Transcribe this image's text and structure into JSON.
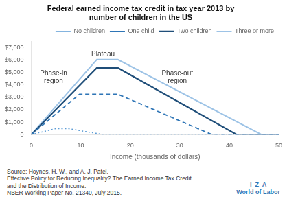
{
  "chart_data": {
    "type": "line",
    "title": "Federal earned income tax credit in tax year 2013 by\nnumber of children in the US",
    "xlabel": "Income (thousands of dollars)",
    "xlim": [
      0,
      50
    ],
    "xticks": [
      0,
      10,
      20,
      30,
      40,
      50
    ],
    "ylim": [
      0,
      7500
    ],
    "yticks": [
      0,
      {
        "value": 1000,
        "label": "$1,000"
      },
      {
        "value": 2000,
        "label": "$2,000"
      },
      {
        "value": 3000,
        "label": "$3,000"
      },
      {
        "value": 4000,
        "label": "$4,000"
      },
      {
        "value": 5000,
        "label": "$5,000"
      },
      {
        "value": 6000,
        "label": "$6,000"
      },
      {
        "value": 7000,
        "label": "$7,000"
      }
    ],
    "grid": false,
    "legend": "upper right",
    "series": [
      {
        "name": "No children",
        "color": "#5b9bd5",
        "line_style": "dotted",
        "x": [
          0,
          5.0,
          7.5,
          14.5,
          50
        ],
        "values": [
          0,
          487,
          487,
          0,
          0
        ]
      },
      {
        "name": "One child",
        "color": "#2e75b6",
        "line_style": "dashed",
        "x": [
          0,
          9.75,
          17.5,
          36.5,
          50
        ],
        "values": [
          0,
          3250,
          3250,
          0,
          0
        ]
      },
      {
        "name": "Two children",
        "color": "#1f4e79",
        "line_style": "solid",
        "x": [
          0,
          13.25,
          17.5,
          41.5,
          50
        ],
        "values": [
          0,
          5372,
          5372,
          0,
          0
        ]
      },
      {
        "name": "Three or more",
        "color": "#9dc3e6",
        "line_style": "solid",
        "x": [
          0,
          13.25,
          17.5,
          46.5,
          50
        ],
        "values": [
          0,
          6044,
          6044,
          0,
          0
        ]
      }
    ],
    "annotations": [
      {
        "text": "Phase-in\nregion",
        "x": 4.5,
        "y": 4600
      },
      {
        "text": "Plateau",
        "x": 14.5,
        "y": 6450
      },
      {
        "text": "Phase-out\nregion",
        "x": 29.5,
        "y": 4600
      }
    ],
    "source": [
      "Source: Hoynes, H. W., and A. J. Patel.",
      "Effective Policy for Reducing Inequality? The Earned Income Tax Credit",
      "and the Distribution of Income.",
      "NBER Working Paper No. 21340, July 2015."
    ],
    "credit": [
      "I  Z  A",
      "World of Labor"
    ]
  }
}
